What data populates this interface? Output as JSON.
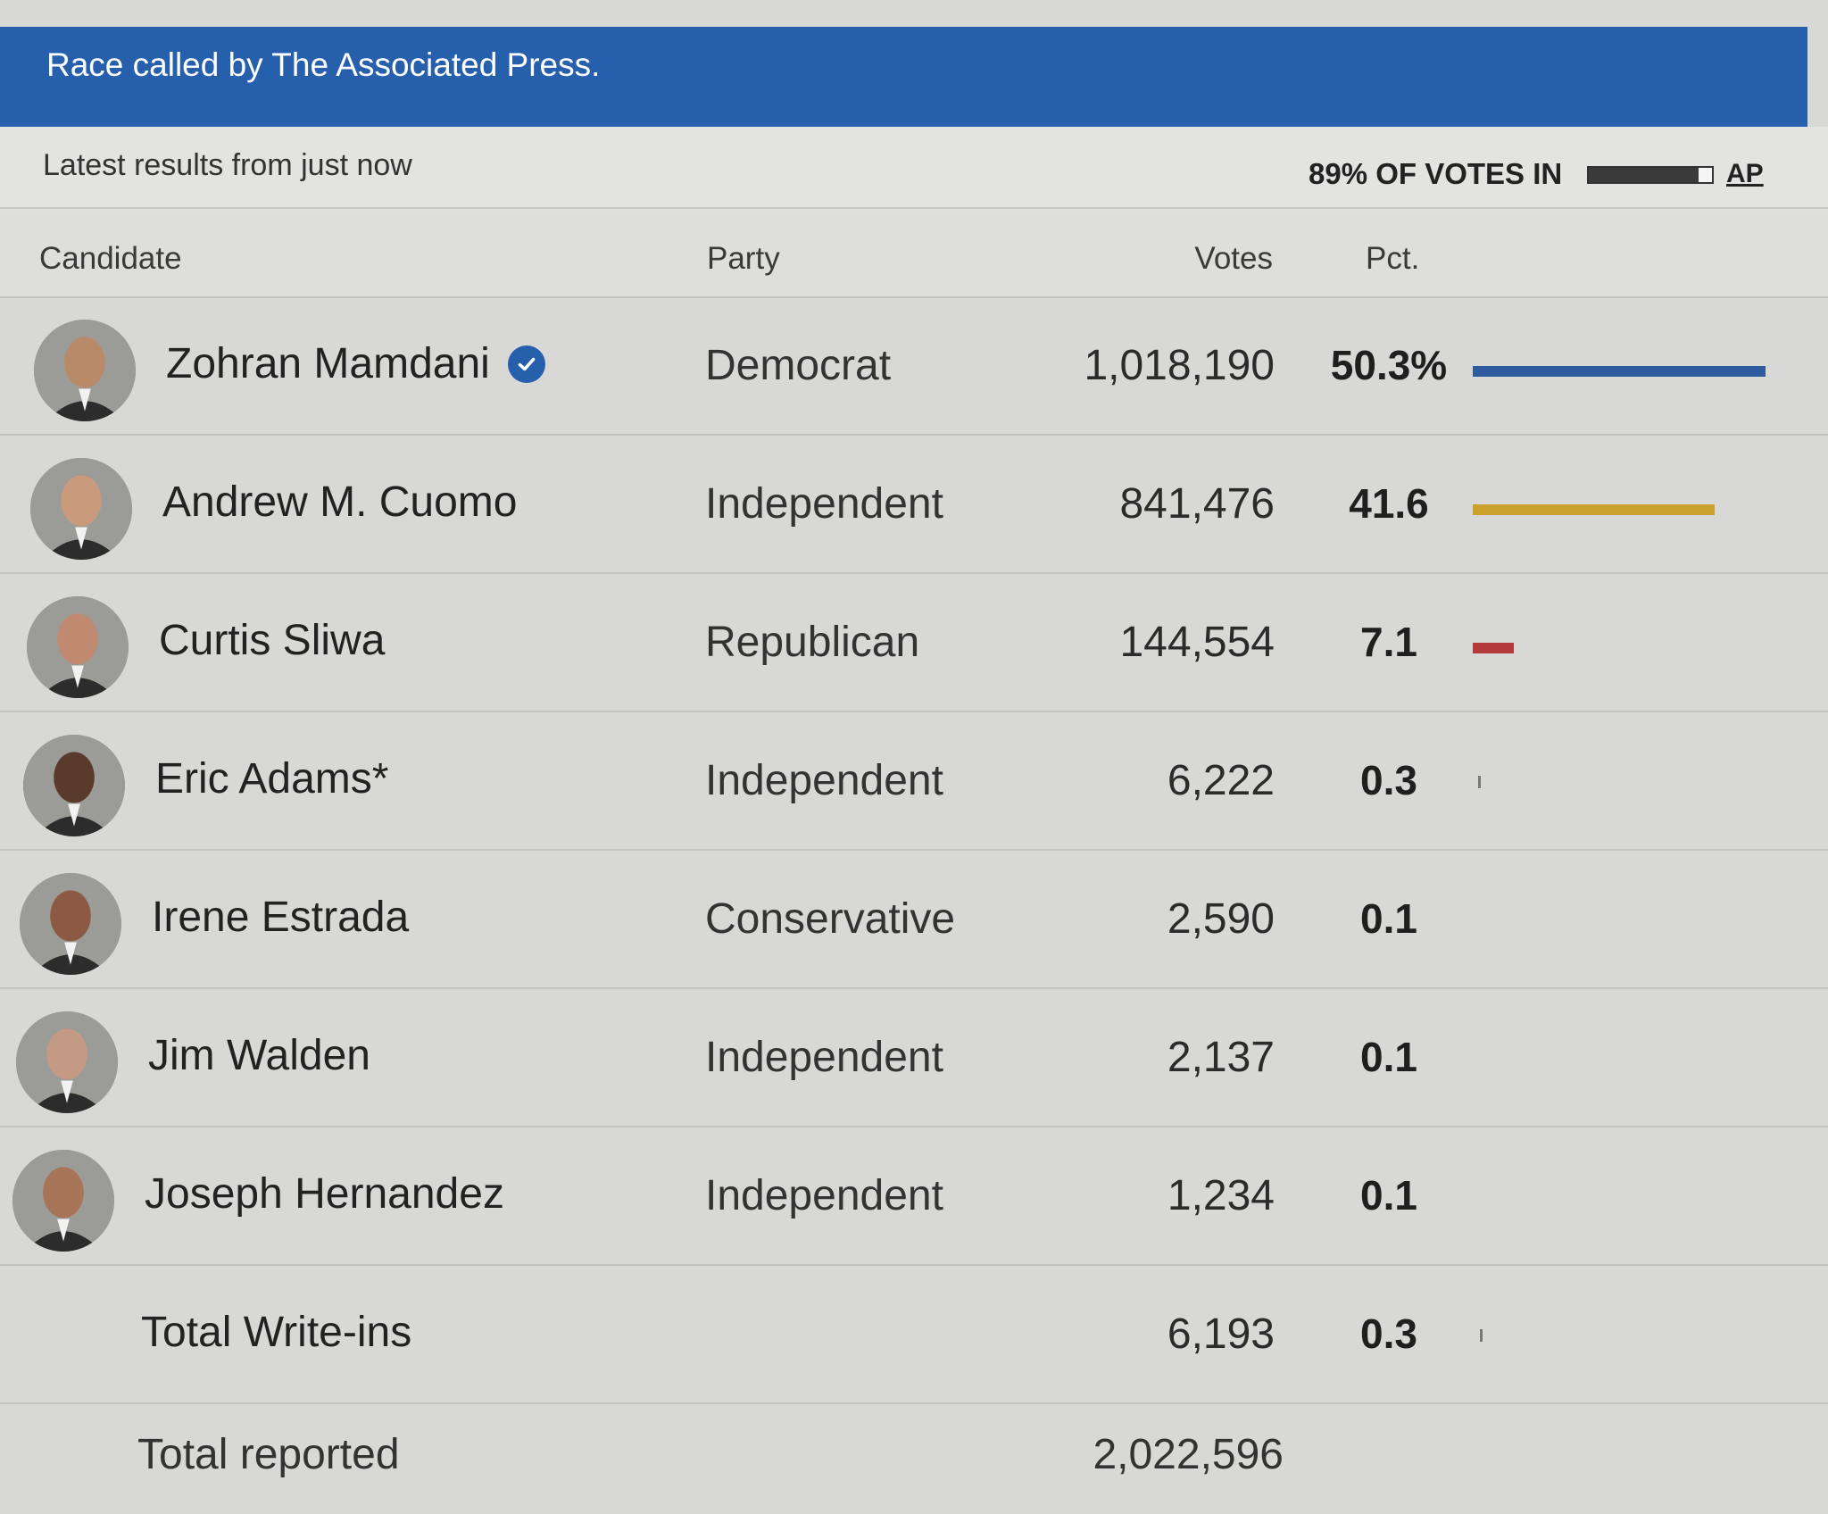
{
  "banner": {
    "text": "Race called by The Associated Press."
  },
  "status": {
    "latest": "Latest results from just now",
    "votes_in_label": "89% OF VOTES IN",
    "votes_in_fraction": 0.89,
    "source_link": "AP"
  },
  "columns": {
    "candidate": "Candidate",
    "party": "Party",
    "votes": "Votes",
    "pct": "Pct."
  },
  "rows": [
    {
      "name": "Zohran Mamdani",
      "winner": true,
      "party": "Democrat",
      "votes": "1,018,190",
      "pct": "50.3%",
      "pct_value": 50.3,
      "bar_color": "#2f5c9e",
      "avatar": "portrait-icon"
    },
    {
      "name": "Andrew M. Cuomo",
      "winner": false,
      "party": "Independent",
      "votes": "841,476",
      "pct": "41.6",
      "pct_value": 41.6,
      "bar_color": "#c9a12c",
      "avatar": "portrait-icon"
    },
    {
      "name": "Curtis Sliwa",
      "winner": false,
      "party": "Republican",
      "votes": "144,554",
      "pct": "7.1",
      "pct_value": 7.1,
      "bar_color": "#b3393a",
      "avatar": "portrait-icon"
    },
    {
      "name": "Eric Adams*",
      "winner": false,
      "party": "Independent",
      "votes": "6,222",
      "pct": "0.3",
      "pct_value": 0.3,
      "bar_color": "#777777",
      "avatar": "portrait-icon"
    },
    {
      "name": "Irene Estrada",
      "winner": false,
      "party": "Conservative",
      "votes": "2,590",
      "pct": "0.1",
      "pct_value": 0.1,
      "bar_color": "#777777",
      "avatar": "portrait-icon"
    },
    {
      "name": "Jim Walden",
      "winner": false,
      "party": "Independent",
      "votes": "2,137",
      "pct": "0.1",
      "pct_value": 0.1,
      "bar_color": "#777777",
      "avatar": "portrait-icon"
    },
    {
      "name": "Joseph Hernandez",
      "winner": false,
      "party": "Independent",
      "votes": "1,234",
      "pct": "0.1",
      "pct_value": 0.1,
      "bar_color": "#777777",
      "avatar": "portrait-icon"
    },
    {
      "name": "Total Write-ins",
      "winner": false,
      "party": "",
      "votes": "6,193",
      "pct": "0.3",
      "pct_value": 0.3,
      "bar_color": "#777777",
      "avatar": null
    }
  ],
  "total": {
    "label": "Total reported",
    "value": "2,022,596"
  }
}
